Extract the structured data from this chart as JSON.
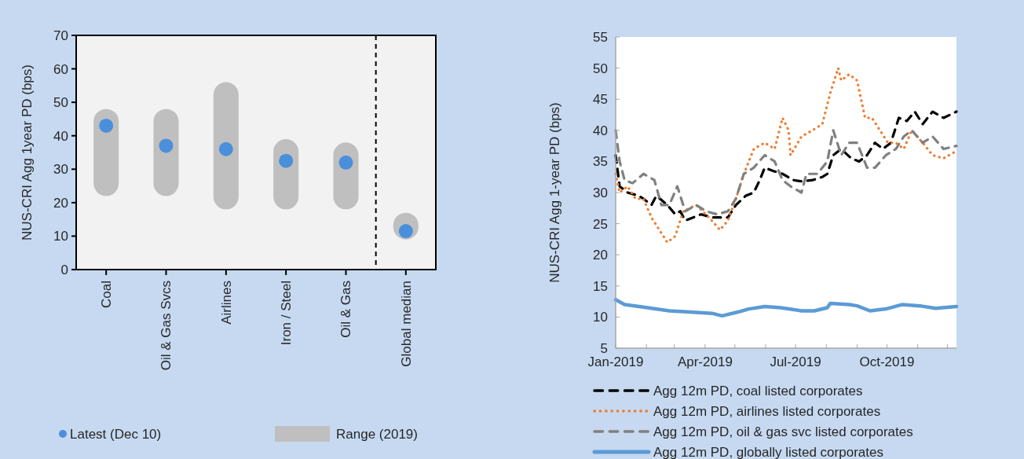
{
  "chart_data": [
    {
      "type": "bar",
      "ylabel": "NUS-CRI Agg 1year PD (bps)",
      "categories": [
        "Coal",
        "Oil & Gas Svcs",
        "Airlines",
        "Iron / Steel",
        "Oil & Gas",
        "Global median"
      ],
      "ylim": [
        0,
        70
      ],
      "yticks": [
        0,
        10,
        20,
        30,
        40,
        50,
        60,
        70
      ],
      "grid": false,
      "legend": "bottom",
      "series": [
        {
          "type": "scatter",
          "name": "Latest (Dec 10)",
          "color": "#4a8fdb",
          "x": [
            "Coal",
            "Oil & Gas Svcs",
            "Airlines",
            "Iron / Steel",
            "Oil & Gas",
            "Global median"
          ],
          "values": [
            43,
            37,
            36,
            32.5,
            32,
            11.5
          ]
        },
        {
          "name": "Range (2019)",
          "color": "#bfbfbf",
          "base": [
            22,
            22,
            18,
            18,
            18,
            9
          ],
          "values": [
            26,
            26,
            38,
            21,
            20,
            8
          ]
        }
      ]
    },
    {
      "type": "line",
      "ylabel": "NUS-CRI Agg 1-year PD (bps)",
      "xlim": [
        "2019-01-01",
        "2019-12-10"
      ],
      "ylim": [
        5,
        55
      ],
      "yticks": [
        5,
        10,
        15,
        20,
        25,
        30,
        35,
        40,
        45,
        50,
        55
      ],
      "xticks": [
        {
          "value": "2019-01-01",
          "label": "Jan-2019"
        },
        {
          "value": "2019-02-01",
          "label": null
        },
        {
          "value": "2019-03-01",
          "label": null
        },
        {
          "value": "2019-04-01",
          "label": "Apr-2019"
        },
        {
          "value": "2019-05-01",
          "label": null
        },
        {
          "value": "2019-06-01",
          "label": null
        },
        {
          "value": "2019-07-01",
          "label": "Jul-2019"
        },
        {
          "value": "2019-08-01",
          "label": null
        },
        {
          "value": "2019-09-01",
          "label": null
        },
        {
          "value": "2019-10-01",
          "label": "Oct-2019"
        },
        {
          "value": "2019-11-01",
          "label": null
        },
        {
          "value": "2019-12-01",
          "label": null
        }
      ],
      "grid": false,
      "legend": "bottom",
      "marker": "none",
      "series": [
        {
          "name": "Agg 12m PD, coal listed corporates",
          "color": "#000000",
          "line_style": "dashed",
          "x": [
            "2019-01-01",
            "2019-01-05",
            "2019-01-13",
            "2019-01-24",
            "2019-01-29",
            "2019-02-06",
            "2019-02-11",
            "2019-02-22",
            "2019-03-02",
            "2019-03-07",
            "2019-03-12",
            "2019-03-20",
            "2019-03-28",
            "2019-04-08",
            "2019-04-24",
            "2019-05-02",
            "2019-05-12",
            "2019-05-20",
            "2019-05-26",
            "2019-05-31",
            "2019-06-08",
            "2019-06-18",
            "2019-06-29",
            "2019-07-07",
            "2019-07-18",
            "2019-07-28",
            "2019-08-02",
            "2019-08-08",
            "2019-08-16",
            "2019-08-26",
            "2019-09-03",
            "2019-09-11",
            "2019-09-19",
            "2019-09-27",
            "2019-10-05",
            "2019-10-13",
            "2019-10-21",
            "2019-10-29",
            "2019-11-06",
            "2019-11-16",
            "2019-11-27",
            "2019-12-10"
          ],
          "values": [
            36,
            31,
            30,
            29.5,
            29,
            28,
            29.5,
            28,
            26.5,
            27,
            25.5,
            26,
            26.5,
            26,
            26,
            28,
            29.5,
            30,
            32,
            34,
            33.5,
            33,
            32,
            31.8,
            32,
            32.5,
            33,
            36,
            37,
            35.5,
            35,
            36,
            38,
            37,
            38,
            42,
            41.5,
            43,
            41,
            43,
            42,
            43
          ]
        },
        {
          "name": "Agg 12m PD, airlines listed corporates",
          "color": "#ed7d31",
          "line_style": "dotted",
          "x": [
            "2019-01-01",
            "2019-01-05",
            "2019-01-13",
            "2019-01-21",
            "2019-01-29",
            "2019-02-06",
            "2019-02-14",
            "2019-02-22",
            "2019-03-02",
            "2019-03-10",
            "2019-03-23",
            "2019-04-05",
            "2019-04-16",
            "2019-04-24",
            "2019-05-02",
            "2019-05-10",
            "2019-05-20",
            "2019-05-31",
            "2019-06-10",
            "2019-06-18",
            "2019-06-24",
            "2019-06-26",
            "2019-07-07",
            "2019-07-18",
            "2019-07-28",
            "2019-08-05",
            "2019-08-13",
            "2019-08-16",
            "2019-08-24",
            "2019-09-01",
            "2019-09-09",
            "2019-09-16",
            "2019-09-24",
            "2019-10-02",
            "2019-10-10",
            "2019-10-18",
            "2019-10-26",
            "2019-11-06",
            "2019-11-16",
            "2019-11-27",
            "2019-12-08"
          ],
          "values": [
            33,
            30,
            31,
            29,
            29,
            26,
            24,
            22,
            23,
            27,
            28,
            26,
            24,
            25.5,
            29,
            33,
            37,
            38,
            37,
            42,
            40,
            36,
            39,
            40,
            41,
            46,
            50,
            48,
            49,
            48,
            42,
            42,
            40,
            38,
            38,
            37,
            40,
            38,
            36,
            35.5,
            36.5
          ]
        },
        {
          "name": "Agg 12m PD, oil & gas svc listed corporates",
          "color": "#808080",
          "line_style": "dashed",
          "x": [
            "2019-01-01",
            "2019-01-05",
            "2019-01-10",
            "2019-01-18",
            "2019-01-29",
            "2019-02-09",
            "2019-02-16",
            "2019-02-24",
            "2019-03-04",
            "2019-03-12",
            "2019-03-23",
            "2019-04-02",
            "2019-04-13",
            "2019-04-24",
            "2019-05-02",
            "2019-05-10",
            "2019-05-20",
            "2019-05-31",
            "2019-06-10",
            "2019-06-18",
            "2019-06-26",
            "2019-07-07",
            "2019-07-12",
            "2019-07-23",
            "2019-08-02",
            "2019-08-08",
            "2019-08-16",
            "2019-08-24",
            "2019-09-01",
            "2019-09-11",
            "2019-09-19",
            "2019-09-30",
            "2019-10-10",
            "2019-10-18",
            "2019-10-26",
            "2019-11-06",
            "2019-11-16",
            "2019-11-27",
            "2019-12-10"
          ],
          "values": [
            40,
            35,
            32,
            31.5,
            33,
            32,
            28,
            28,
            31,
            27,
            28,
            27,
            26.5,
            27,
            29,
            33,
            34,
            36,
            35,
            32,
            31,
            30,
            33,
            33,
            35,
            40,
            36,
            38,
            38,
            34,
            34,
            36,
            37,
            39,
            40,
            38,
            39,
            37,
            37.5
          ]
        },
        {
          "name": "Agg 12m PD, globally listed corporates",
          "color": "#5b9bd5",
          "line_style": "solid",
          "x": [
            "2019-01-01",
            "2019-01-10",
            "2019-01-29",
            "2019-02-24",
            "2019-03-17",
            "2019-04-08",
            "2019-04-18",
            "2019-05-04",
            "2019-05-15",
            "2019-05-31",
            "2019-06-16",
            "2019-07-07",
            "2019-07-20",
            "2019-08-02",
            "2019-08-05",
            "2019-08-24",
            "2019-09-01",
            "2019-09-14",
            "2019-09-30",
            "2019-10-16",
            "2019-11-03",
            "2019-11-19",
            "2019-12-10"
          ],
          "values": [
            12.8,
            12,
            11.6,
            11,
            10.8,
            10.6,
            10.2,
            10.8,
            11.3,
            11.7,
            11.5,
            11,
            11,
            11.5,
            12.2,
            12,
            11.8,
            11,
            11.3,
            12,
            11.8,
            11.4,
            11.7
          ]
        }
      ]
    }
  ]
}
